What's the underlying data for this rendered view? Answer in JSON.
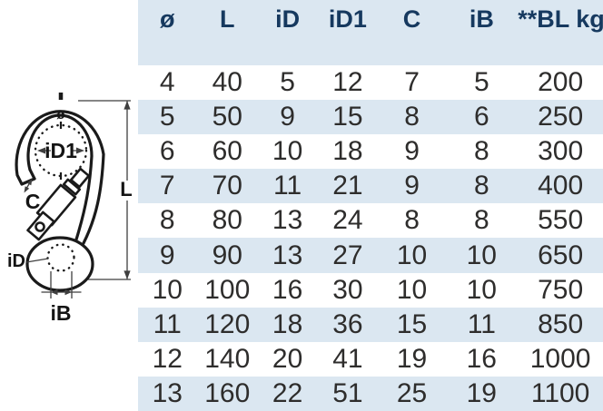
{
  "diagram": {
    "labels": {
      "diameter_symbol": "ø",
      "inner_diameter_1": "iD1",
      "gate_opening": "C",
      "length": "L",
      "inner_diameter": "iD",
      "inner_width": "iB"
    }
  },
  "table": {
    "headers": [
      "ø",
      "L",
      "iD",
      "iD1",
      "C",
      "iB",
      "**BL kg"
    ],
    "rows": [
      [
        "4",
        "40",
        "5",
        "12",
        "7",
        "5",
        "200"
      ],
      [
        "5",
        "50",
        "9",
        "15",
        "8",
        "6",
        "250"
      ],
      [
        "6",
        "60",
        "10",
        "18",
        "9",
        "8",
        "300"
      ],
      [
        "7",
        "70",
        "11",
        "21",
        "9",
        "8",
        "400"
      ],
      [
        "8",
        "80",
        "13",
        "24",
        "8",
        "8",
        "550"
      ],
      [
        "9",
        "90",
        "13",
        "27",
        "10",
        "10",
        "650"
      ],
      [
        "10",
        "100",
        "16",
        "30",
        "10",
        "10",
        "750"
      ],
      [
        "11",
        "120",
        "18",
        "36",
        "15",
        "11",
        "850"
      ],
      [
        "12",
        "140",
        "20",
        "41",
        "19",
        "16",
        "1000"
      ],
      [
        "13",
        "160",
        "22",
        "51",
        "25",
        "19",
        "1100"
      ]
    ]
  },
  "colors": {
    "header_bg": "#dbe7f1",
    "stripe_bg": "#dbe7f1",
    "header_text": "#16395f",
    "body_text": "#2e2d2c",
    "drawing_stroke": "#1a1a1a",
    "dim_line": "#3f3f3f"
  }
}
